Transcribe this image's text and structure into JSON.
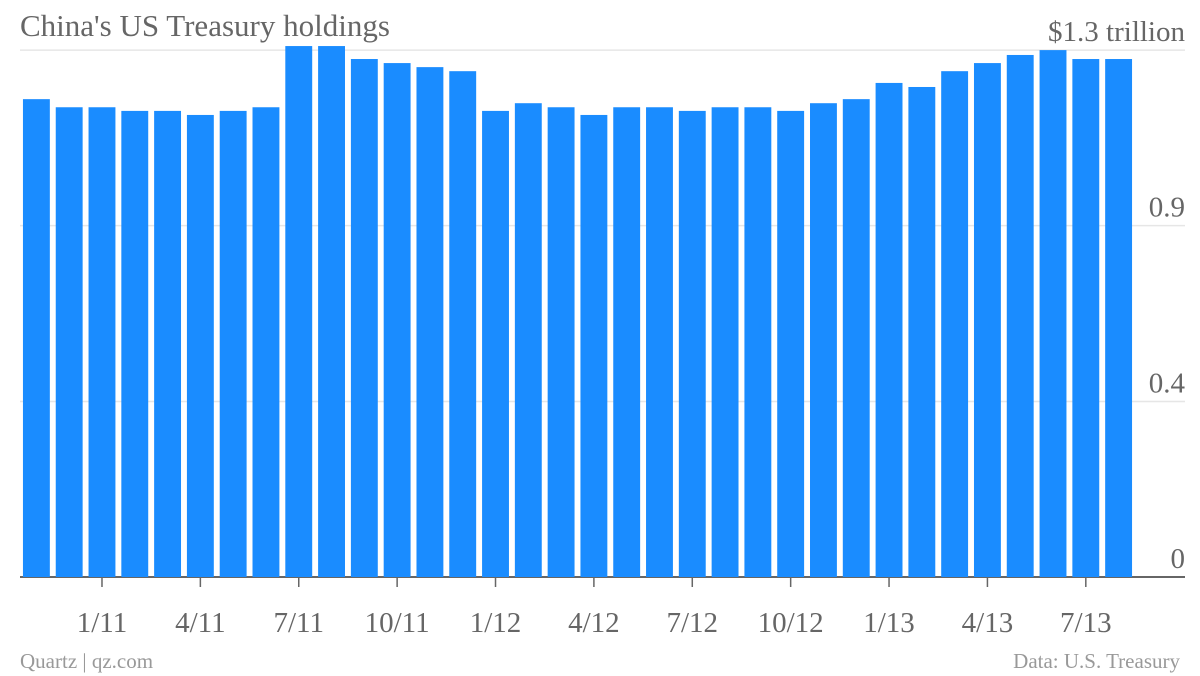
{
  "chart_data": {
    "type": "bar",
    "title": "China's US Treasury holdings",
    "categories": [
      null,
      null,
      "1/11",
      null,
      null,
      "4/11",
      null,
      null,
      "7/11",
      null,
      null,
      "10/11",
      null,
      null,
      "1/12",
      null,
      null,
      "4/12",
      null,
      null,
      "7/12",
      null,
      null,
      "10/12",
      null,
      null,
      "1/13",
      null,
      null,
      "4/13",
      null,
      null,
      "7/13",
      null
    ],
    "values": [
      1.179,
      1.159,
      1.159,
      1.15,
      1.15,
      1.14,
      1.15,
      1.159,
      1.31,
      1.31,
      1.278,
      1.268,
      1.258,
      1.248,
      1.15,
      1.169,
      1.159,
      1.14,
      1.159,
      1.159,
      1.15,
      1.159,
      1.159,
      1.15,
      1.169,
      1.179,
      1.219,
      1.209,
      1.248,
      1.268,
      1.288,
      1.3,
      1.278,
      1.278
    ],
    "color": "#1a8cff",
    "ylim": [
      0,
      1.32
    ],
    "yticks": [
      0,
      {
        "value": 0.433,
        "label": "0.4"
      },
      {
        "value": 0.867,
        "label": "0.9"
      },
      {
        "value": 1.3,
        "label": "$1.3 trillion"
      }
    ],
    "grid": true,
    "source": "Quartz | qz.com",
    "note": "Data: U.S. Treasury"
  }
}
